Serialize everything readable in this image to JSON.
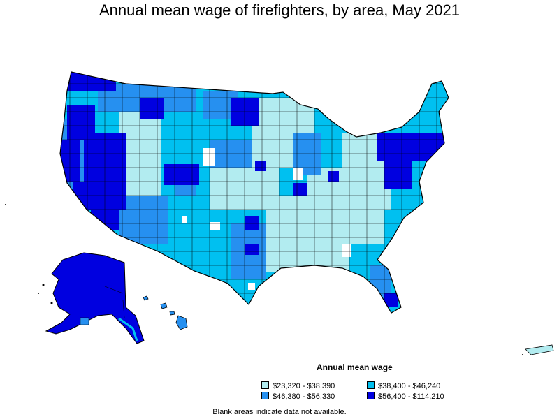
{
  "title": "Annual mean wage of firefighters, by area, May 2021",
  "legend": {
    "title": "Annual mean wage",
    "items": [
      {
        "label": "$23,320 - $38,390",
        "color": "#b2ecf0"
      },
      {
        "label": "$38,400 - $46,240",
        "color": "#00c0f0"
      },
      {
        "label": "$46,380 - $56,330",
        "color": "#2690f0"
      },
      {
        "label": "$56,400 - $114,210",
        "color": "#0000e0"
      }
    ]
  },
  "footnote": "Blank areas indicate data not available."
}
